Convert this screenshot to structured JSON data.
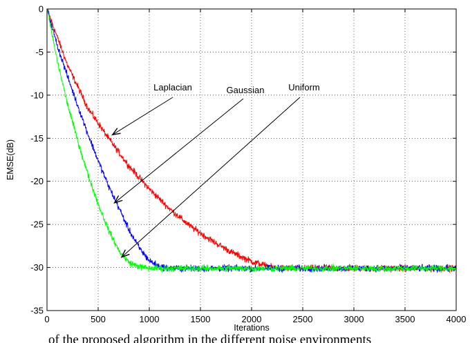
{
  "chart_data": {
    "type": "line",
    "title": "",
    "xlabel": "Iterations",
    "ylabel": "EMSE(dB)",
    "xlim": [
      0,
      4000
    ],
    "ylim": [
      -35,
      0
    ],
    "xticks": [
      0,
      500,
      1000,
      1500,
      2000,
      2500,
      3000,
      3500,
      4000
    ],
    "yticks": [
      0,
      -5,
      -10,
      -15,
      -20,
      -25,
      -30,
      -35
    ],
    "grid": true,
    "series": [
      {
        "name": "Laplacian",
        "color": "#ff0000",
        "x": [
          0,
          200,
          400,
          600,
          800,
          1000,
          1200,
          1400,
          1600,
          1800,
          2000,
          2200,
          2400,
          2600,
          2800,
          3000,
          3200,
          3400,
          3600,
          3800,
          4000
        ],
        "y": [
          0,
          -6.5,
          -11.5,
          -15.0,
          -18.2,
          -20.9,
          -23.2,
          -25.2,
          -26.8,
          -28.2,
          -29.3,
          -30.0,
          -30.1,
          -30.1,
          -30.1,
          -30.1,
          -30.1,
          -30.1,
          -30.1,
          -30.1,
          -30.1
        ]
      },
      {
        "name": "Gaussian",
        "color": "#0000ff",
        "x": [
          0,
          100,
          200,
          300,
          400,
          500,
          600,
          700,
          800,
          900,
          1000,
          1100,
          1200,
          1400,
          1600,
          2000,
          2500,
          3000,
          3500,
          4000
        ],
        "y": [
          0,
          -4.2,
          -7.8,
          -11.2,
          -14.5,
          -17.6,
          -20.5,
          -23.0,
          -25.6,
          -27.7,
          -29.2,
          -29.9,
          -30.1,
          -30.1,
          -30.1,
          -30.1,
          -30.1,
          -30.1,
          -30.1,
          -30.1
        ]
      },
      {
        "name": "Uniform",
        "color": "#00ff00",
        "x": [
          0,
          100,
          200,
          300,
          400,
          500,
          600,
          700,
          800,
          900,
          1000,
          1200,
          1500,
          2000,
          2500,
          3000,
          3500,
          4000
        ],
        "y": [
          0,
          -6.0,
          -11.0,
          -15.3,
          -19.2,
          -22.6,
          -25.6,
          -28.0,
          -29.4,
          -29.9,
          -30.1,
          -30.1,
          -30.1,
          -30.1,
          -30.1,
          -30.1,
          -30.1,
          -30.1
        ]
      }
    ],
    "annotations": [
      {
        "text": "Laplacian",
        "series": "Laplacian",
        "point": [
          640,
          -14.6
        ]
      },
      {
        "text": "Gaussian",
        "series": "Gaussian",
        "point": [
          660,
          -22.5
        ]
      },
      {
        "text": "Uniform",
        "series": "Uniform",
        "point": [
          730,
          -28.8
        ]
      }
    ]
  },
  "caption": "of the proposed algorithm in the different noise environments"
}
